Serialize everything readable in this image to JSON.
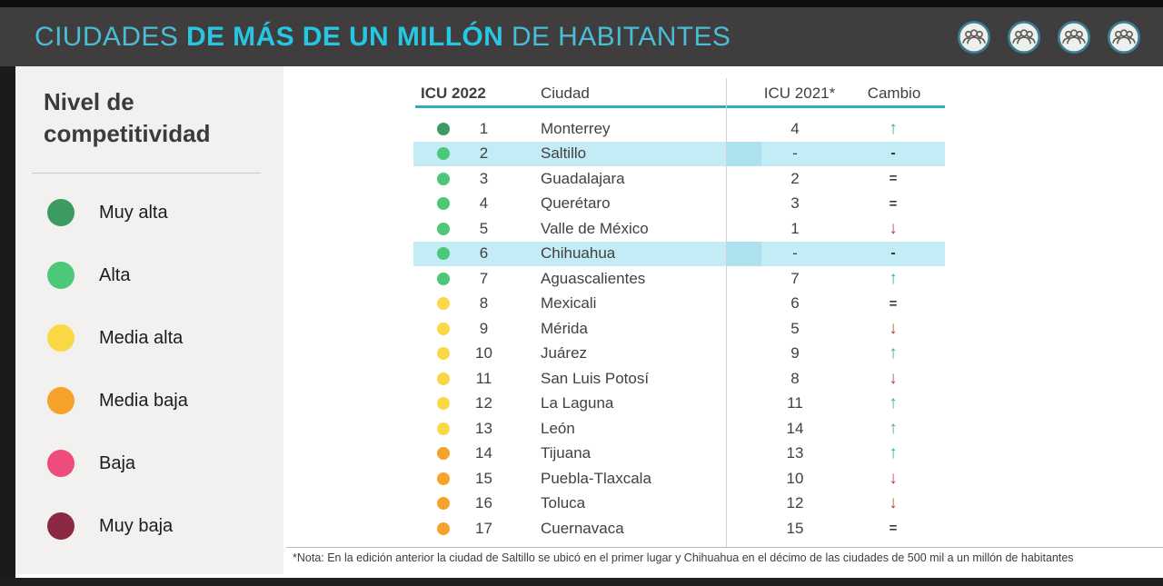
{
  "header": {
    "title_prefix": "CIUDADES ",
    "title_bold": "DE MÁS DE UN MILLÓN",
    "title_suffix": " DE HABITANTES",
    "icons": [
      "people-group-icon",
      "people-group-icon",
      "people-group-icon",
      "people-group-icon"
    ]
  },
  "sidebar": {
    "title_line1": "Nivel de",
    "title_line2": "competitividad",
    "legend": [
      {
        "label": "Muy alta",
        "color": "#3c9a62"
      },
      {
        "label": "Alta",
        "color": "#4dc878"
      },
      {
        "label": "Media alta",
        "color": "#fad845"
      },
      {
        "label": "Media baja",
        "color": "#f7a22b"
      },
      {
        "label": "Baja",
        "color": "#ee4d7b"
      },
      {
        "label": "Muy baja",
        "color": "#8b2942"
      }
    ]
  },
  "table": {
    "columns": {
      "icu2022": "ICU 2022",
      "ciudad": "Ciudad",
      "icu2021": "ICU 2021*",
      "cambio": "Cambio"
    }
  },
  "level_colors": {
    "muy-alta": "#3c9a62",
    "alta": "#4dc878",
    "media-alta": "#fad845",
    "media-baja": "#f7a22b",
    "baja": "#ee4d7b",
    "muy-baja": "#8b2942"
  },
  "change_glyphs": {
    "up": "↑",
    "down": "↓",
    "equal": "=",
    "dash": "-"
  },
  "colors": {
    "header_bg": "#3f3d3d",
    "title_cyan": "#49bdd6",
    "title_cyan_bold": "#27c6e2",
    "sidebar_bg": "#f2f1ef",
    "row_highlight": "#c4ecf6",
    "teal_rule": "#2fafbe",
    "arrow_up_green": "#2fb673",
    "arrow_down_red": "#b5433a"
  },
  "footnote": "*Nota: En la edición anterior la ciudad de Saltillo se ubicó en el primer lugar y Chihuahua en el décimo de las ciudades de 500 mil a un millón de habitantes",
  "chart_data": {
    "type": "table",
    "title": "CIUDADES DE MÁS DE UN MILLÓN DE HABITANTES",
    "columns": [
      "ICU 2022",
      "Ciudad",
      "ICU 2021*",
      "Cambio"
    ],
    "legend_title": "Nivel de competitividad",
    "legend": [
      "Muy alta",
      "Alta",
      "Media alta",
      "Media baja",
      "Baja",
      "Muy baja"
    ],
    "rows": [
      {
        "rank": "1",
        "city": "Monterrey",
        "level": "muy-alta",
        "icu2021": "4",
        "change": "up",
        "highlight": false
      },
      {
        "rank": "2",
        "city": "Saltillo",
        "level": "alta",
        "icu2021": "-",
        "change": "dash",
        "highlight": true
      },
      {
        "rank": "3",
        "city": "Guadalajara",
        "level": "alta",
        "icu2021": "2",
        "change": "equal",
        "highlight": false
      },
      {
        "rank": "4",
        "city": "Querétaro",
        "level": "alta",
        "icu2021": "3",
        "change": "equal",
        "highlight": false
      },
      {
        "rank": "5",
        "city": "Valle de México",
        "level": "alta",
        "icu2021": "1",
        "change": "down",
        "highlight": false
      },
      {
        "rank": "6",
        "city": "Chihuahua",
        "level": "alta",
        "icu2021": "-",
        "change": "dash",
        "highlight": true
      },
      {
        "rank": "7",
        "city": "Aguascalientes",
        "level": "alta",
        "icu2021": "7",
        "change": "up",
        "highlight": false
      },
      {
        "rank": "8",
        "city": "Mexicali",
        "level": "media-alta",
        "icu2021": "6",
        "change": "equal",
        "highlight": false
      },
      {
        "rank": "9",
        "city": "Mérida",
        "level": "media-alta",
        "icu2021": "5",
        "change": "down",
        "highlight": false
      },
      {
        "rank": "10",
        "city": "Juárez",
        "level": "media-alta",
        "icu2021": "9",
        "change": "up",
        "highlight": false
      },
      {
        "rank": "11",
        "city": "San Luis Potosí",
        "level": "media-alta",
        "icu2021": "8",
        "change": "down",
        "highlight": false
      },
      {
        "rank": "12",
        "city": "La Laguna",
        "level": "media-alta",
        "icu2021": "11",
        "change": "up",
        "highlight": false
      },
      {
        "rank": "13",
        "city": "León",
        "level": "media-alta",
        "icu2021": "14",
        "change": "up",
        "highlight": false
      },
      {
        "rank": "14",
        "city": "Tijuana",
        "level": "media-baja",
        "icu2021": "13",
        "change": "up",
        "highlight": false
      },
      {
        "rank": "15",
        "city": "Puebla-Tlaxcala",
        "level": "media-baja",
        "icu2021": "10",
        "change": "down",
        "highlight": false
      },
      {
        "rank": "16",
        "city": "Toluca",
        "level": "media-baja",
        "icu2021": "12",
        "change": "down",
        "highlight": false
      },
      {
        "rank": "17",
        "city": "Cuernavaca",
        "level": "media-baja",
        "icu2021": "15",
        "change": "equal",
        "highlight": false
      }
    ]
  }
}
